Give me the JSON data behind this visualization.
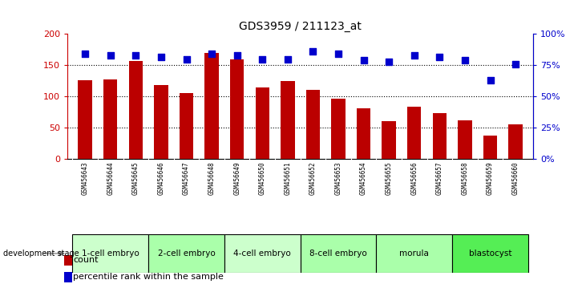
{
  "title": "GDS3959 / 211123_at",
  "samples": [
    "GSM456643",
    "GSM456644",
    "GSM456645",
    "GSM456646",
    "GSM456647",
    "GSM456648",
    "GSM456649",
    "GSM456650",
    "GSM456651",
    "GSM456652",
    "GSM456653",
    "GSM456654",
    "GSM456655",
    "GSM456656",
    "GSM456657",
    "GSM456658",
    "GSM456659",
    "GSM456660"
  ],
  "counts": [
    126,
    128,
    157,
    118,
    106,
    170,
    160,
    114,
    125,
    111,
    96,
    81,
    61,
    84,
    74,
    62,
    38,
    56
  ],
  "percentiles": [
    84,
    83,
    83,
    82,
    80,
    84,
    83,
    80,
    80,
    86,
    84,
    79,
    78,
    83,
    82,
    79,
    63,
    76
  ],
  "bar_color": "#bb0000",
  "dot_color": "#0000cc",
  "ylim_left": [
    0,
    200
  ],
  "ylim_right": [
    0,
    100
  ],
  "yticks_left": [
    0,
    50,
    100,
    150,
    200
  ],
  "yticks_right": [
    0,
    25,
    50,
    75,
    100
  ],
  "ytick_labels_right": [
    "0%",
    "25%",
    "50%",
    "75%",
    "100%"
  ],
  "hlines": [
    50,
    100,
    150
  ],
  "stages": [
    {
      "label": "1-cell embryo",
      "start": 0,
      "end": 3
    },
    {
      "label": "2-cell embryo",
      "start": 3,
      "end": 6
    },
    {
      "label": "4-cell embryo",
      "start": 6,
      "end": 9
    },
    {
      "label": "8-cell embryo",
      "start": 9,
      "end": 12
    },
    {
      "label": "morula",
      "start": 12,
      "end": 15
    },
    {
      "label": "blastocyst",
      "start": 15,
      "end": 18
    }
  ],
  "stage_colors": [
    "#ccffcc",
    "#aaffaa",
    "#ccffcc",
    "#aaffaa",
    "#aaffaa",
    "#55ee55"
  ],
  "left_axis_color": "#cc0000",
  "right_axis_color": "#0000cc",
  "plot_bg": "#ffffff",
  "tick_area_bg": "#c8c8c8",
  "legend_count_color": "#bb0000",
  "legend_pct_color": "#0000cc"
}
